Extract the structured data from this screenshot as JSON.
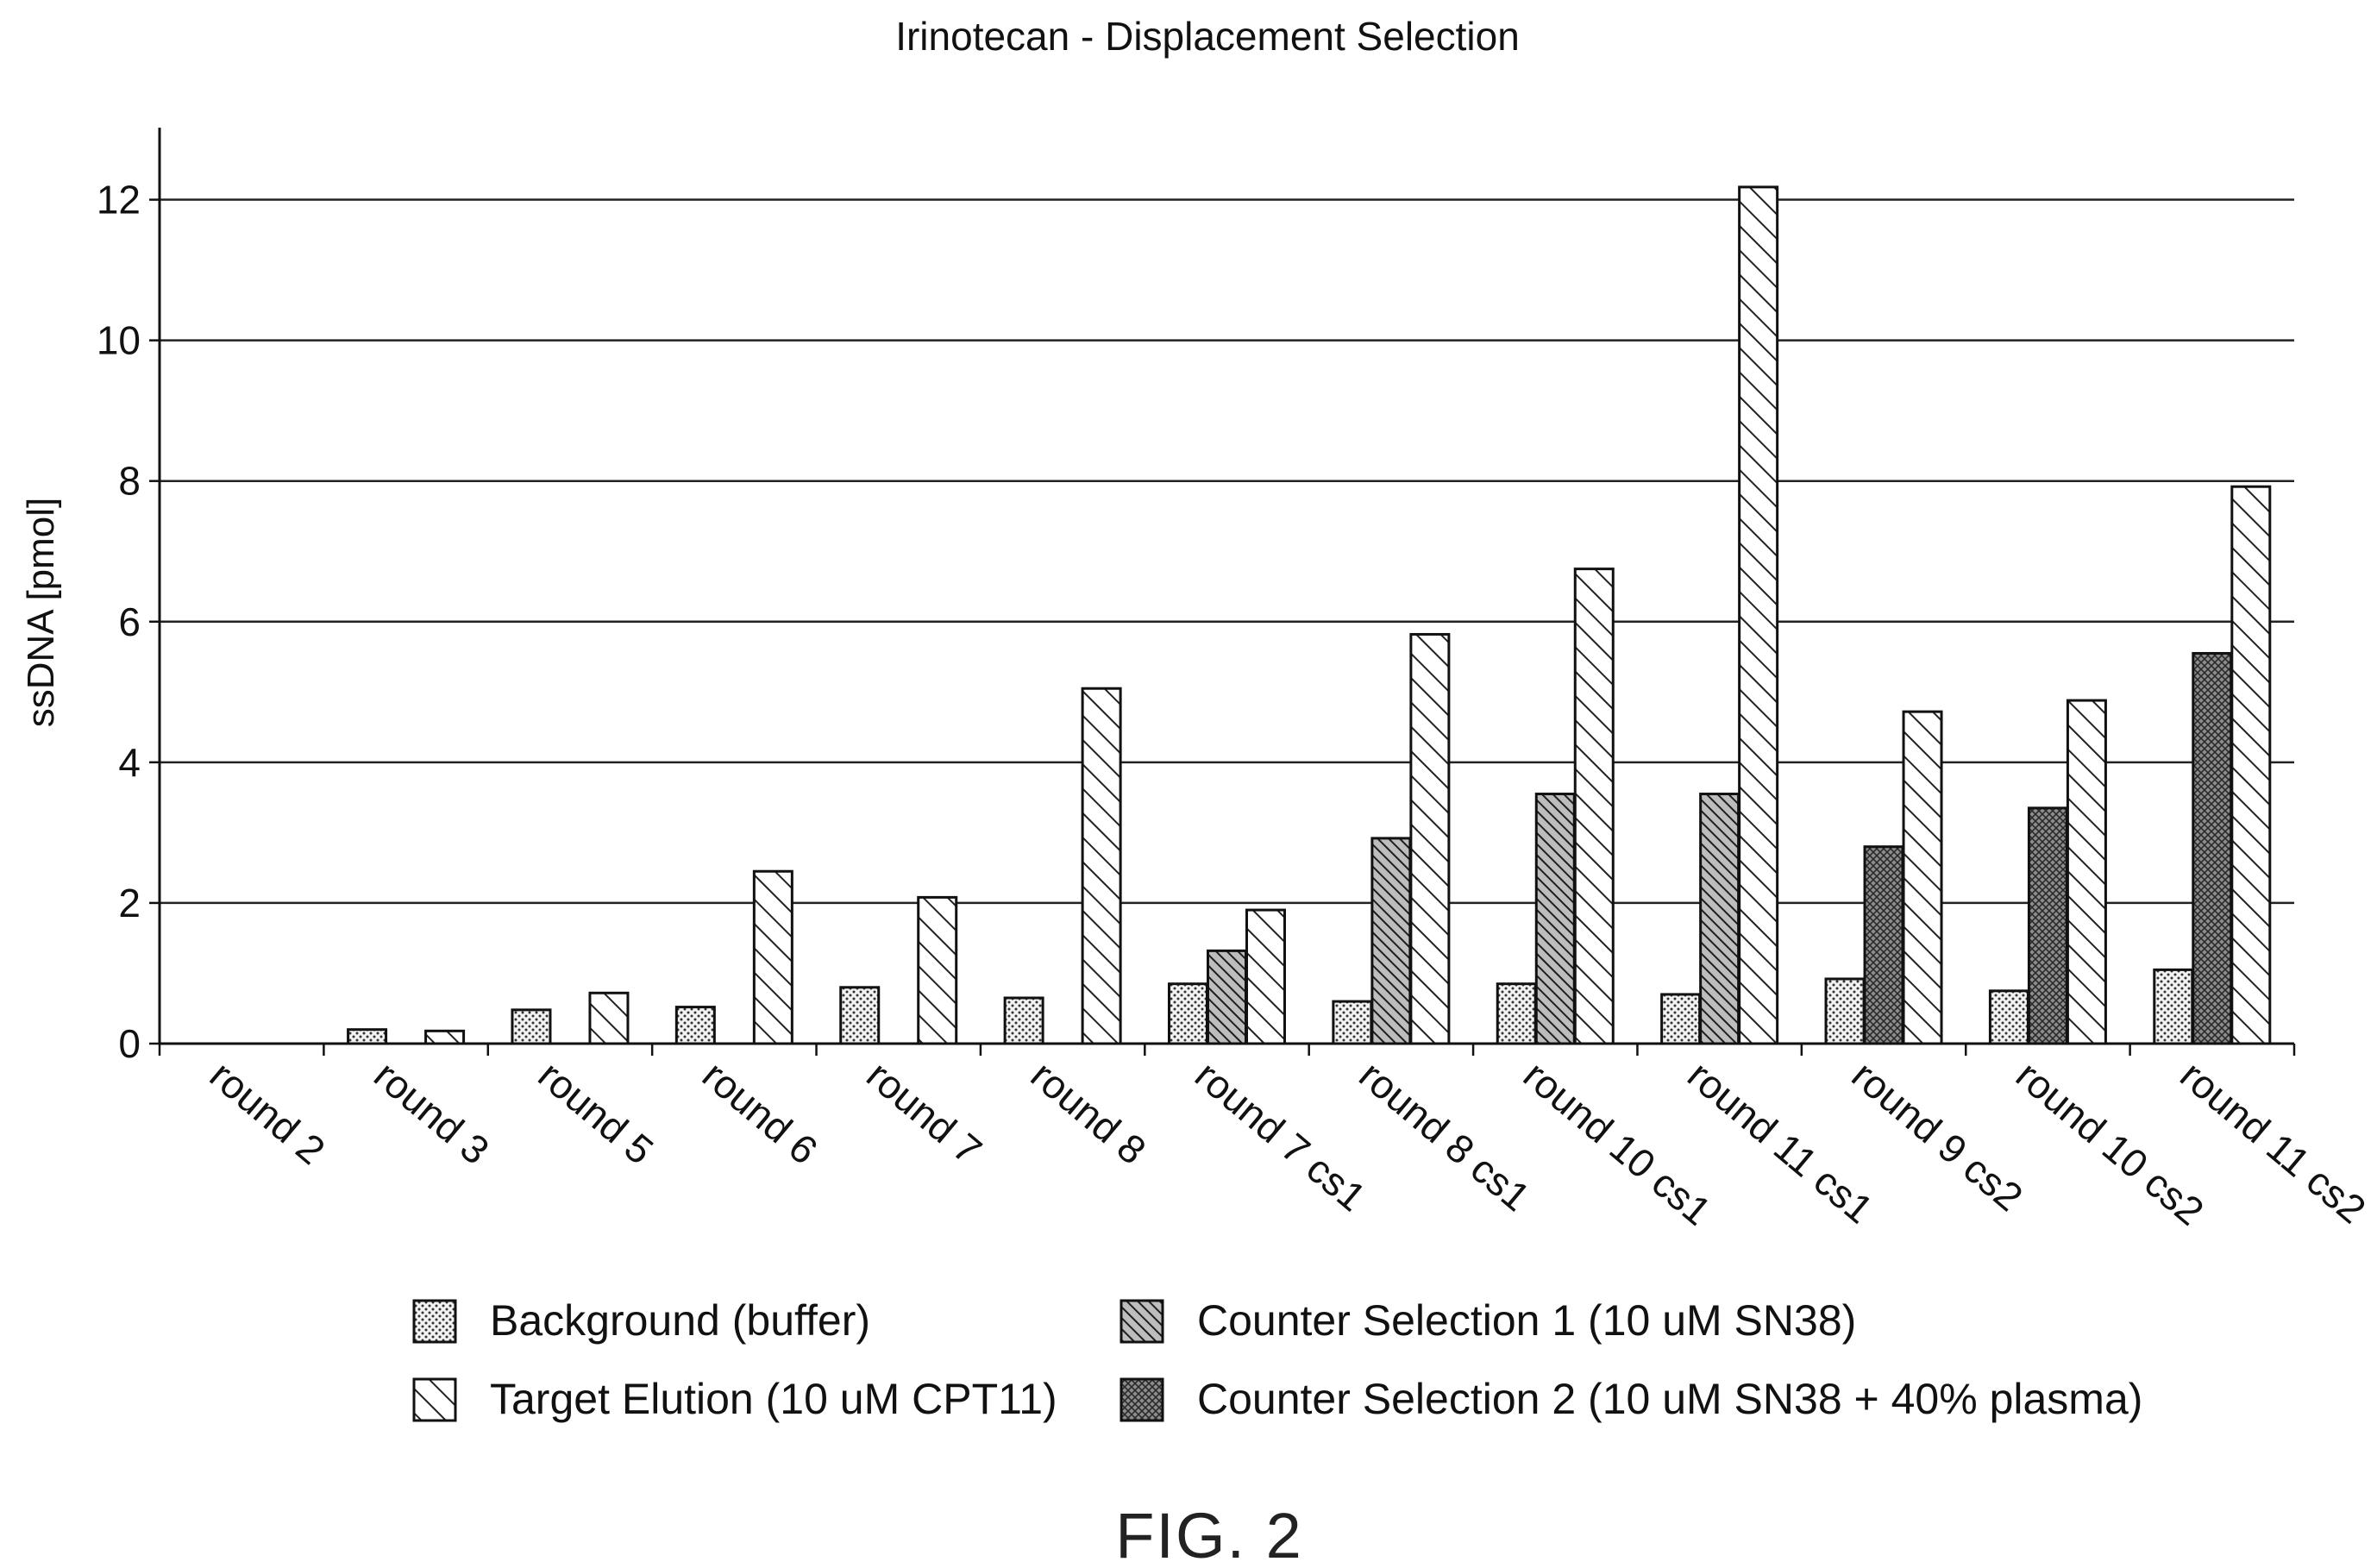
{
  "chart_data": {
    "type": "bar",
    "title": "Irinotecan - Displacement Selection",
    "ylabel": "ssDNA [pmol]",
    "xlabel": "",
    "ylim": [
      0,
      13
    ],
    "yticks": [
      0,
      2,
      4,
      6,
      8,
      10,
      12
    ],
    "grid": true,
    "legend_position": "bottom",
    "categories": [
      "round 2",
      "round 3",
      "round 5",
      "round 6",
      "round 7",
      "round 8",
      "round 7 cs1",
      "round 8 cs1",
      "round 10 cs1",
      "round 11 cs1",
      "round 9 cs2",
      "round 10 cs2",
      "round 11 cs2"
    ],
    "series": [
      {
        "name": "Background (buffer)",
        "pattern": "dots",
        "values": [
          0,
          0.2,
          0.48,
          0.52,
          0.8,
          0.65,
          0.85,
          0.6,
          0.85,
          0.7,
          0.92,
          0.75,
          1.05
        ]
      },
      {
        "name": "Counter Selection 1 (10 uM SN38)",
        "pattern": "dense-hatch",
        "values": [
          null,
          null,
          null,
          null,
          null,
          null,
          1.32,
          2.92,
          3.55,
          3.55,
          null,
          null,
          null
        ]
      },
      {
        "name": "Counter Selection 2 (10 uM SN38 + 40% plasma)",
        "pattern": "crosshatch",
        "values": [
          null,
          null,
          null,
          null,
          null,
          null,
          null,
          null,
          null,
          null,
          2.8,
          3.35,
          5.55
        ]
      },
      {
        "name": "Target Elution (10 uM CPT11)",
        "pattern": "diagonal",
        "values": [
          0,
          0.18,
          0.72,
          2.45,
          2.08,
          5.05,
          1.9,
          5.82,
          6.75,
          12.18,
          4.72,
          4.88,
          7.92
        ]
      }
    ],
    "legend_layout": [
      [
        "Background (buffer)",
        "Counter Selection 1 (10 uM SN38)"
      ],
      [
        "Target Elution (10 uM CPT11)",
        "Counter Selection 2 (10 uM SN38 + 40% plasma)"
      ]
    ]
  },
  "figure_label": "FIG. 2",
  "colors": {
    "ink": "#111111",
    "grid": "#222222",
    "background": "#ffffff"
  }
}
